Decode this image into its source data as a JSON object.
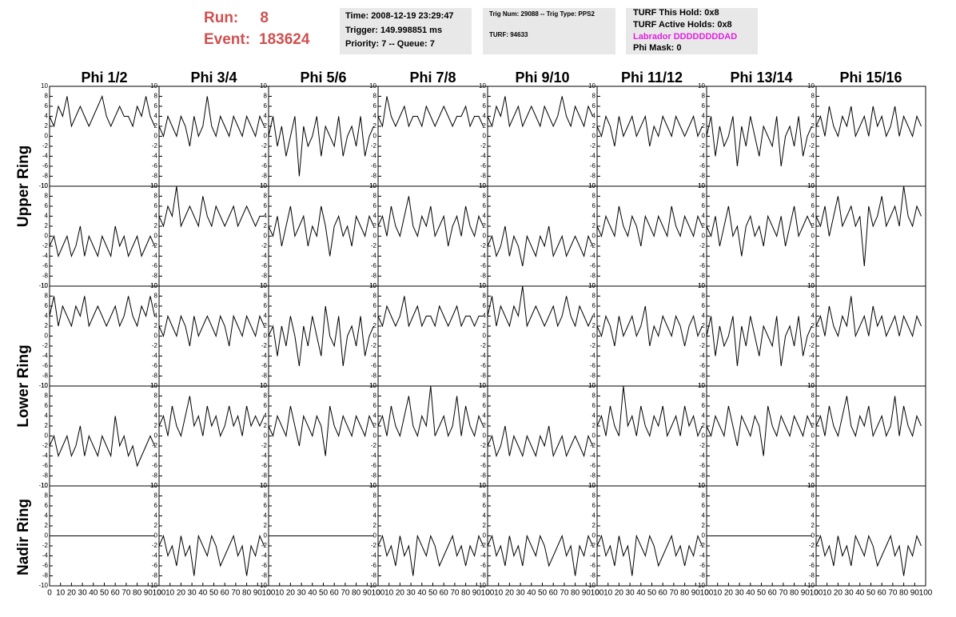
{
  "header": {
    "run_label": "Run:",
    "run": 8,
    "event_label": "Event:",
    "event": 183624,
    "info": [
      [
        "Time: 2008-12-19 23:29:47",
        "Trigger: 149.998851 ms",
        "Priority: 7 -- Queue: 7"
      ],
      [
        "Trig Num: 29088 -- Trig Type: PPS2",
        "TURF: 94633"
      ],
      [
        "TURF This Hold: 0x8",
        "TURF Active Holds: 0x8",
        "Labrador DDDDDDDDAD",
        "Phi Mask: 0"
      ]
    ]
  },
  "grid": {
    "columns": [
      "Phi 1/2",
      "Phi 3/4",
      "Phi 5/6",
      "Phi 7/8",
      "Phi 9/10",
      "Phi 11/12",
      "Phi 13/14",
      "Phi 15/16"
    ],
    "rows": [
      "Upper Ring",
      "Lower Ring",
      "Nadir Ring"
    ],
    "xlim": [
      0,
      100
    ],
    "ylim": [
      -10,
      10
    ],
    "xticks": [
      0,
      10,
      20,
      30,
      40,
      50,
      60,
      70,
      80,
      90,
      100
    ],
    "yticks": [
      -10,
      -8,
      -6,
      -4,
      -2,
      0,
      2,
      4,
      6,
      8,
      10
    ],
    "x": [
      0,
      4,
      8,
      12,
      16,
      20,
      24,
      28,
      32,
      36,
      40,
      44,
      48,
      52,
      56,
      60,
      64,
      68,
      72,
      76,
      80,
      84,
      88,
      92,
      96
    ],
    "panels": [
      [
        [
          4,
          2,
          6,
          4,
          8,
          2,
          4,
          6,
          4,
          2,
          4,
          6,
          8,
          4,
          2,
          4,
          6,
          4,
          4,
          2,
          6,
          4,
          8,
          4,
          2
        ],
        [
          2,
          0,
          4,
          2,
          0,
          4,
          2,
          -2,
          4,
          0,
          2,
          8,
          2,
          0,
          4,
          2,
          0,
          4,
          2,
          0,
          4,
          2,
          0,
          4,
          2
        ],
        [
          0,
          4,
          -2,
          2,
          -4,
          0,
          4,
          -8,
          2,
          -2,
          0,
          4,
          -4,
          2,
          0,
          -2,
          4,
          -4,
          0,
          2,
          -2,
          4,
          -4,
          0,
          2
        ],
        [
          4,
          2,
          8,
          4,
          2,
          4,
          6,
          2,
          4,
          4,
          2,
          6,
          4,
          2,
          4,
          6,
          4,
          2,
          4,
          4,
          6,
          2,
          4,
          4,
          2
        ],
        [
          4,
          2,
          6,
          4,
          8,
          2,
          4,
          6,
          2,
          4,
          6,
          4,
          2,
          6,
          4,
          2,
          4,
          8,
          4,
          2,
          6,
          4,
          2,
          6,
          4
        ],
        [
          2,
          0,
          4,
          2,
          -2,
          4,
          0,
          2,
          4,
          0,
          2,
          4,
          -2,
          2,
          0,
          4,
          2,
          0,
          4,
          2,
          0,
          2,
          4,
          0,
          2
        ],
        [
          0,
          4,
          -4,
          2,
          -2,
          0,
          4,
          -6,
          2,
          -2,
          4,
          0,
          -4,
          2,
          0,
          -2,
          4,
          -6,
          0,
          2,
          -2,
          4,
          -4,
          0,
          2
        ],
        [
          2,
          4,
          0,
          6,
          2,
          0,
          4,
          2,
          6,
          0,
          2,
          4,
          0,
          6,
          2,
          4,
          0,
          2,
          6,
          0,
          4,
          2,
          0,
          4,
          2
        ]
      ],
      [
        [
          -2,
          0,
          -4,
          -2,
          0,
          -4,
          -2,
          2,
          -4,
          0,
          -2,
          -4,
          0,
          -2,
          -4,
          2,
          -2,
          0,
          -4,
          -2,
          0,
          -4,
          -2,
          0,
          -2
        ],
        [
          4,
          2,
          6,
          4,
          10,
          2,
          4,
          6,
          4,
          2,
          8,
          4,
          2,
          6,
          4,
          2,
          4,
          6,
          2,
          4,
          6,
          4,
          2,
          4,
          4
        ],
        [
          2,
          0,
          4,
          -2,
          2,
          6,
          0,
          2,
          4,
          -2,
          2,
          0,
          6,
          2,
          -4,
          2,
          4,
          0,
          2,
          -2,
          4,
          2,
          0,
          4,
          2
        ],
        [
          2,
          4,
          0,
          6,
          2,
          0,
          4,
          8,
          2,
          0,
          4,
          2,
          6,
          0,
          2,
          4,
          -2,
          2,
          4,
          0,
          6,
          2,
          0,
          4,
          2
        ],
        [
          -2,
          0,
          -4,
          -2,
          2,
          -4,
          0,
          -2,
          -6,
          0,
          -2,
          -4,
          0,
          -2,
          2,
          -4,
          -2,
          0,
          -4,
          -2,
          0,
          -2,
          -4,
          0,
          -2
        ],
        [
          2,
          0,
          4,
          2,
          0,
          6,
          2,
          0,
          4,
          2,
          -2,
          4,
          2,
          0,
          4,
          2,
          0,
          6,
          2,
          0,
          4,
          2,
          0,
          4,
          2
        ],
        [
          2,
          0,
          4,
          -2,
          2,
          6,
          0,
          2,
          -4,
          2,
          4,
          0,
          2,
          -2,
          4,
          2,
          0,
          4,
          -2,
          2,
          6,
          0,
          2,
          4,
          2
        ],
        [
          4,
          2,
          6,
          0,
          4,
          8,
          2,
          4,
          6,
          2,
          4,
          -6,
          6,
          2,
          4,
          8,
          2,
          4,
          6,
          2,
          10,
          4,
          2,
          6,
          4
        ]
      ],
      [
        [
          4,
          8,
          2,
          6,
          4,
          2,
          6,
          4,
          8,
          2,
          4,
          6,
          4,
          2,
          4,
          6,
          2,
          4,
          8,
          4,
          2,
          6,
          4,
          8,
          4
        ],
        [
          2,
          0,
          4,
          2,
          0,
          4,
          2,
          -2,
          4,
          0,
          2,
          4,
          2,
          0,
          4,
          2,
          -2,
          4,
          2,
          0,
          4,
          2,
          0,
          4,
          2
        ],
        [
          0,
          2,
          -4,
          2,
          -2,
          4,
          0,
          -6,
          2,
          -2,
          4,
          0,
          -4,
          6,
          0,
          -2,
          4,
          -6,
          0,
          2,
          -2,
          4,
          -4,
          0,
          2
        ],
        [
          4,
          2,
          6,
          4,
          2,
          4,
          8,
          2,
          4,
          6,
          2,
          4,
          4,
          2,
          6,
          4,
          2,
          4,
          6,
          2,
          4,
          4,
          2,
          4,
          4
        ],
        [
          4,
          8,
          2,
          6,
          4,
          2,
          6,
          4,
          10,
          2,
          4,
          6,
          4,
          2,
          4,
          6,
          2,
          4,
          8,
          4,
          2,
          6,
          4,
          2,
          4
        ],
        [
          2,
          0,
          4,
          2,
          -2,
          4,
          0,
          2,
          4,
          0,
          2,
          6,
          -2,
          2,
          0,
          4,
          2,
          0,
          4,
          2,
          -2,
          2,
          4,
          0,
          2
        ],
        [
          0,
          4,
          -4,
          2,
          -2,
          0,
          4,
          -6,
          2,
          -2,
          4,
          0,
          -4,
          2,
          0,
          -2,
          4,
          -6,
          0,
          2,
          -2,
          4,
          -4,
          0,
          2
        ],
        [
          2,
          4,
          0,
          6,
          2,
          0,
          4,
          2,
          8,
          0,
          2,
          4,
          0,
          6,
          2,
          4,
          0,
          2,
          4,
          0,
          4,
          2,
          0,
          4,
          2
        ]
      ],
      [
        [
          -2,
          0,
          -4,
          -2,
          0,
          -4,
          -2,
          2,
          -4,
          0,
          -2,
          -4,
          0,
          -2,
          -4,
          4,
          -2,
          0,
          -4,
          -2,
          -6,
          -4,
          -2,
          0,
          -2
        ],
        [
          2,
          4,
          0,
          6,
          2,
          0,
          4,
          8,
          2,
          4,
          0,
          6,
          2,
          4,
          0,
          2,
          6,
          2,
          4,
          0,
          6,
          2,
          4,
          2,
          4
        ],
        [
          2,
          0,
          4,
          2,
          0,
          6,
          2,
          -2,
          4,
          2,
          0,
          4,
          2,
          -4,
          6,
          2,
          0,
          4,
          2,
          0,
          4,
          2,
          0,
          4,
          2
        ],
        [
          2,
          4,
          0,
          6,
          2,
          0,
          4,
          8,
          2,
          0,
          4,
          2,
          10,
          0,
          2,
          4,
          0,
          2,
          8,
          0,
          6,
          2,
          0,
          4,
          2
        ],
        [
          -2,
          0,
          -4,
          -2,
          2,
          -4,
          0,
          -2,
          -4,
          0,
          -2,
          -4,
          0,
          -2,
          2,
          -4,
          -2,
          0,
          -4,
          -2,
          0,
          -2,
          -4,
          0,
          -2
        ],
        [
          2,
          4,
          0,
          6,
          2,
          0,
          10,
          2,
          4,
          0,
          6,
          2,
          0,
          4,
          2,
          6,
          0,
          2,
          4,
          0,
          6,
          2,
          4,
          0,
          2
        ],
        [
          2,
          0,
          4,
          2,
          0,
          6,
          2,
          -2,
          4,
          2,
          0,
          4,
          2,
          -4,
          6,
          2,
          0,
          4,
          2,
          0,
          4,
          2,
          0,
          4,
          2
        ],
        [
          2,
          4,
          0,
          6,
          2,
          0,
          4,
          8,
          2,
          0,
          4,
          2,
          6,
          0,
          2,
          4,
          0,
          2,
          8,
          0,
          6,
          2,
          0,
          4,
          2
        ]
      ],
      [
        [
          0,
          0,
          0,
          0,
          0,
          0,
          0,
          0,
          0,
          0,
          0,
          0,
          0,
          0,
          0,
          0,
          0,
          0,
          0,
          0,
          0,
          0,
          0,
          0,
          0
        ],
        [
          -2,
          0,
          -4,
          -2,
          -6,
          0,
          -4,
          -2,
          -8,
          0,
          -2,
          -4,
          0,
          -2,
          -6,
          -4,
          -2,
          0,
          -4,
          -2,
          -8,
          -2,
          -4,
          0,
          -2
        ],
        [
          0,
          0,
          0,
          0,
          0,
          0,
          0,
          0,
          0,
          0,
          0,
          0,
          0,
          0,
          0,
          0,
          0,
          0,
          0,
          0,
          0,
          0,
          0,
          0,
          0
        ],
        [
          -2,
          0,
          -4,
          -2,
          -6,
          0,
          -4,
          -2,
          -8,
          0,
          -2,
          -4,
          0,
          -2,
          -6,
          -4,
          -2,
          0,
          -4,
          -2,
          -6,
          -2,
          -4,
          0,
          -2
        ],
        [
          -2,
          0,
          -4,
          -2,
          -6,
          0,
          -4,
          -2,
          -6,
          0,
          -2,
          -4,
          0,
          -2,
          -6,
          -4,
          -2,
          0,
          -4,
          -2,
          -8,
          -2,
          -4,
          0,
          -2
        ],
        [
          -2,
          0,
          -4,
          -2,
          -6,
          0,
          -4,
          -2,
          -8,
          0,
          -2,
          -4,
          0,
          -2,
          -6,
          -4,
          -2,
          0,
          -4,
          -2,
          -6,
          -2,
          -4,
          0,
          -2
        ],
        [
          0,
          0,
          0,
          0,
          0,
          0,
          0,
          0,
          0,
          0,
          0,
          0,
          0,
          0,
          0,
          0,
          0,
          0,
          0,
          0,
          0,
          0,
          0,
          0,
          0
        ],
        [
          -2,
          0,
          -4,
          -2,
          -6,
          0,
          -4,
          -2,
          -6,
          0,
          -2,
          -4,
          0,
          -2,
          -6,
          -4,
          -2,
          0,
          -4,
          -2,
          -8,
          -2,
          -4,
          0,
          -2
        ]
      ]
    ]
  }
}
